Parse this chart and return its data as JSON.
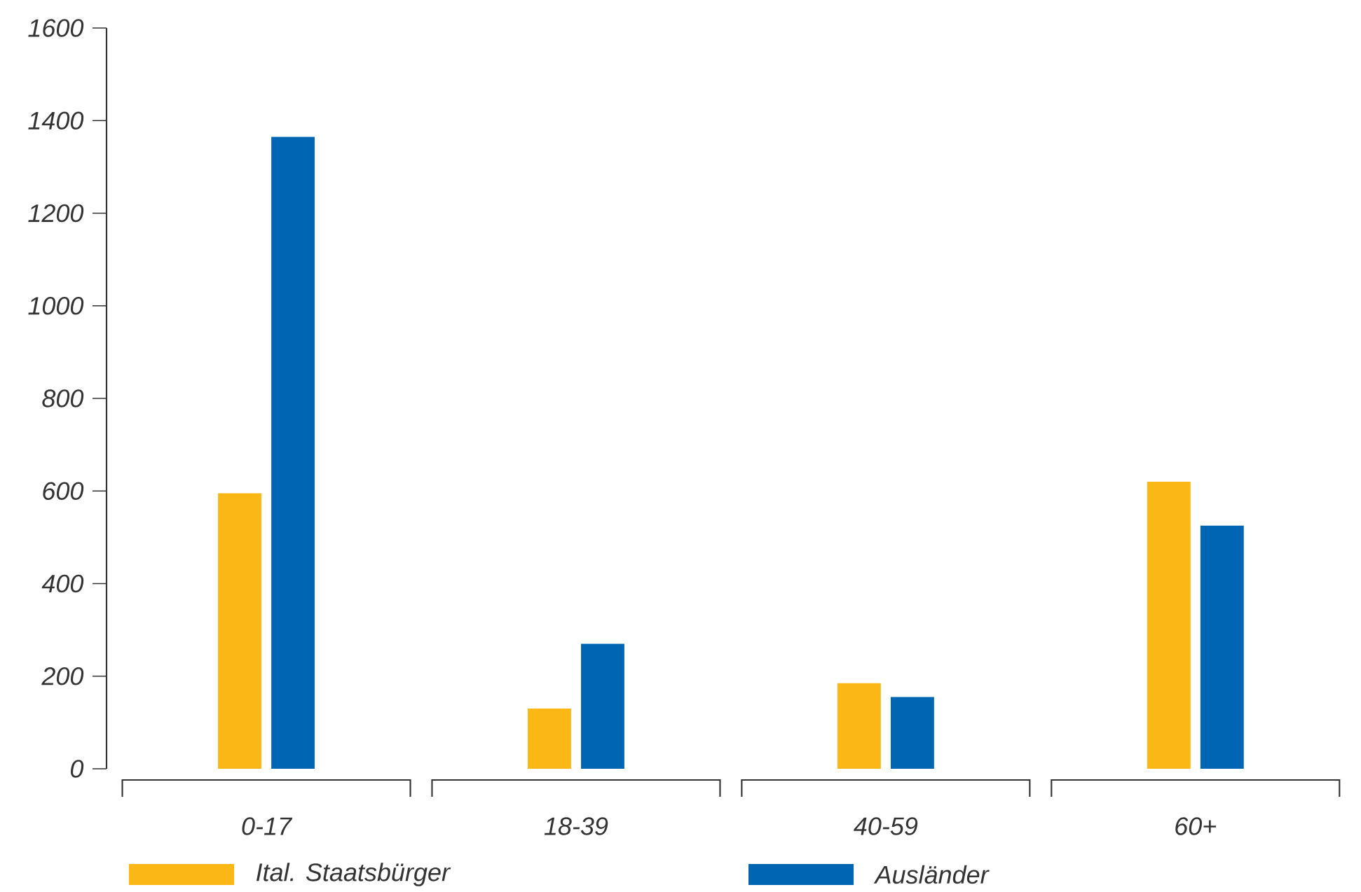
{
  "chart_data": {
    "type": "bar",
    "categories": [
      "0-17",
      "18-39",
      "40-59",
      "60+"
    ],
    "series": [
      {
        "name": "Ital. Staatsbürger",
        "color": "#fbb715",
        "values": [
          595,
          130,
          185,
          620
        ]
      },
      {
        "name": "Ausländer",
        "color": "#0066b3",
        "values": [
          1365,
          270,
          155,
          525
        ]
      }
    ],
    "ylim": [
      0,
      1600
    ],
    "yticks": [
      0,
      200,
      400,
      600,
      800,
      1000,
      1200,
      1400,
      1600
    ],
    "grid": false,
    "legend": "bottom"
  }
}
